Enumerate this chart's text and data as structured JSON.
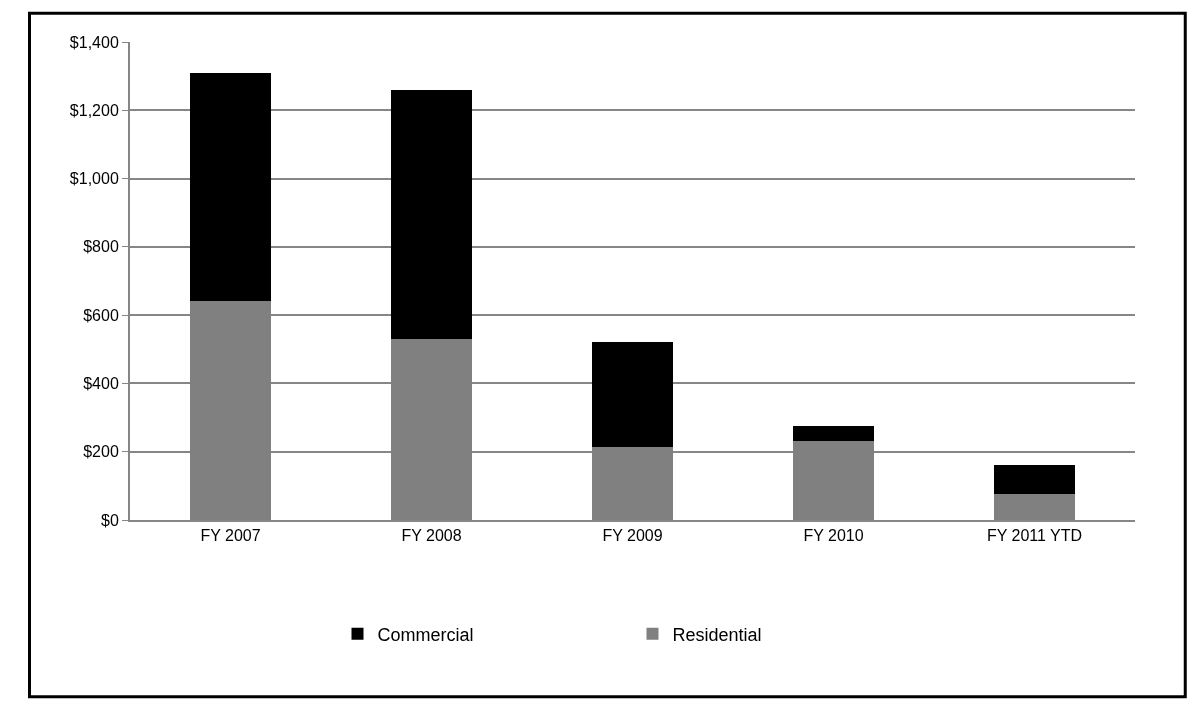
{
  "chart_data": {
    "type": "bar",
    "stacked": true,
    "categories": [
      "FY 2007",
      "FY 2008",
      "FY 2009",
      "FY 2010",
      "FY 2011 YTD"
    ],
    "series": [
      {
        "name": "Residential",
        "color": "#808080",
        "values": [
          640,
          530,
          215,
          230,
          75
        ]
      },
      {
        "name": "Commercial",
        "color": "#000000",
        "values": [
          670,
          730,
          305,
          45,
          85
        ]
      }
    ],
    "ylim": [
      0,
      1400
    ],
    "yticks": [
      {
        "value": 0,
        "label": "$0"
      },
      {
        "value": 200,
        "label": "$200"
      },
      {
        "value": 400,
        "label": "$400"
      },
      {
        "value": 600,
        "label": "$600"
      },
      {
        "value": 800,
        "label": "$800"
      },
      {
        "value": 1000,
        "label": "$1,000"
      },
      {
        "value": 1200,
        "label": "$1,200"
      },
      {
        "value": 1400,
        "label": "$1,400"
      }
    ],
    "grid": "y",
    "legend": "bottom"
  }
}
